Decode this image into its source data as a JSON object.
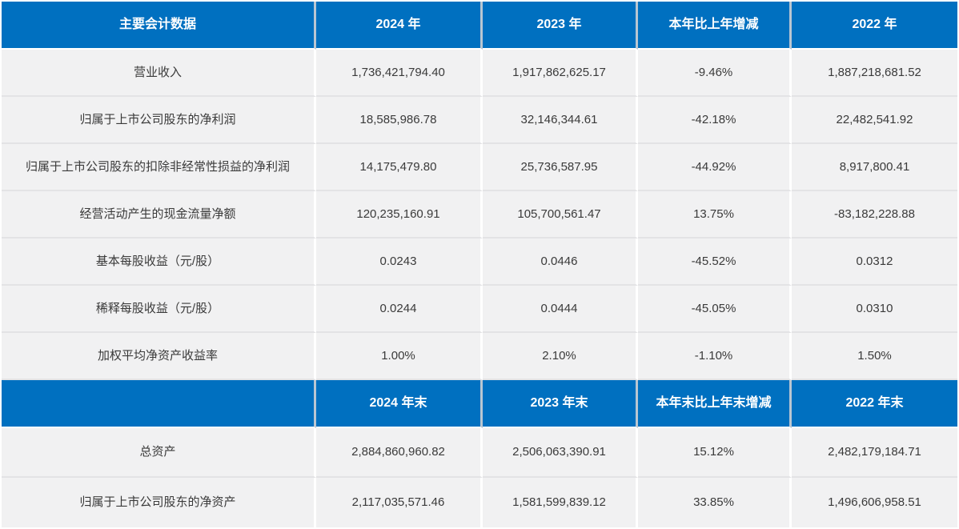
{
  "colors": {
    "header_bg": "#0070C0",
    "header_text": "#ffffff",
    "row_bg": "#f1f1f2",
    "row_text": "#3a3a3a",
    "row_divider": "#e3e3e5",
    "column_gap": "#ffffff"
  },
  "table": {
    "sections": [
      {
        "header": [
          "主要会计数据",
          "2024 年",
          "2023 年",
          "本年比上年增减",
          "2022 年"
        ],
        "rows": [
          [
            "营业收入",
            "1,736,421,794.40",
            "1,917,862,625.17",
            "-9.46%",
            "1,887,218,681.52"
          ],
          [
            "归属于上市公司股东的净利润",
            "18,585,986.78",
            "32,146,344.61",
            "-42.18%",
            "22,482,541.92"
          ],
          [
            "归属于上市公司股东的扣除非经常性损益的净利润",
            "14,175,479.80",
            "25,736,587.95",
            "-44.92%",
            "8,917,800.41"
          ],
          [
            "经营活动产生的现金流量净额",
            "120,235,160.91",
            "105,700,561.47",
            "13.75%",
            "-83,182,228.88"
          ],
          [
            "基本每股收益（元/股）",
            "0.0243",
            "0.0446",
            "-45.52%",
            "0.0312"
          ],
          [
            "稀释每股收益（元/股）",
            "0.0244",
            "0.0444",
            "-45.05%",
            "0.0310"
          ],
          [
            "加权平均净资产收益率",
            "1.00%",
            "2.10%",
            "-1.10%",
            "1.50%"
          ]
        ]
      },
      {
        "header": [
          "",
          "2024 年末",
          "2023 年末",
          "本年末比上年末增减",
          "2022 年末"
        ],
        "rows": [
          [
            "总资产",
            "2,884,860,960.82",
            "2,506,063,390.91",
            "15.12%",
            "2,482,179,184.71"
          ],
          [
            "归属于上市公司股东的净资产",
            "2,117,035,571.46",
            "1,581,599,839.12",
            "33.85%",
            "1,496,606,958.51"
          ]
        ]
      }
    ]
  }
}
